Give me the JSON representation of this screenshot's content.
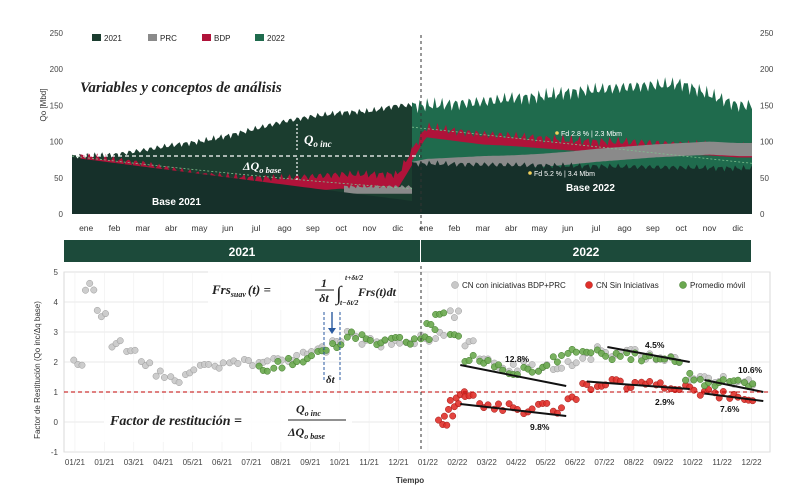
{
  "colors": {
    "s2021": "#1b3d2f",
    "prc": "#8a8a8a",
    "bdp": "#b0133a",
    "s2022": "#1f6b4d",
    "base_dark": "#16302a",
    "band": "#1c4a3a",
    "con": "#c8c8c8",
    "sin": "#e0302a",
    "prom": "#6aa84f",
    "ref": "#c00000"
  },
  "top_chart": {
    "title": "Variables y conceptos de análisis",
    "ylabel": "Qo [Mbd]",
    "y_ticks": [
      "0",
      "50",
      "100",
      "150",
      "200",
      "250"
    ],
    "months": [
      "ene",
      "feb",
      "mar",
      "abr",
      "may",
      "jun",
      "jul",
      "ago",
      "sep",
      "oct",
      "nov",
      "dic",
      "ene",
      "feb",
      "mar",
      "abr",
      "may",
      "jun",
      "jul",
      "ago",
      "sep",
      "oct",
      "nov",
      "dic"
    ],
    "legend": [
      {
        "label": "2021",
        "color_key": "s2021"
      },
      {
        "label": "PRC",
        "color_key": "prc"
      },
      {
        "label": "BDP",
        "color_key": "bdp"
      },
      {
        "label": "2022",
        "color_key": "s2022"
      }
    ],
    "annotations": {
      "q_inc": "Q",
      "q_inc_sub": "o inc",
      "dq_base": "ΔQ",
      "dq_base_sub": "o base",
      "base2021": "Base 2021",
      "base2022": "Base 2022",
      "fd1": "Fd 2.8 % | 2.3 Mbm",
      "fd2": "Fd 5.2 % | 3.4 Mbm"
    }
  },
  "year_band": {
    "y2021": "2021",
    "y2022": "2022"
  },
  "bottom_chart": {
    "ylabel": "Factor de Restitución (Qo inc/Δq base)",
    "xlabel": "Tiempo",
    "y_ticks": [
      "-1",
      "0",
      "1",
      "2",
      "3",
      "4",
      "5"
    ],
    "x_ticks": [
      "01/21",
      "01/21",
      "03/21",
      "04/21",
      "05/21",
      "06/21",
      "07/21",
      "08/21",
      "09/21",
      "10/21",
      "11/21",
      "12/21",
      "01/22",
      "02/22",
      "03/22",
      "04/22",
      "05/22",
      "06/22",
      "07/22",
      "08/22",
      "09/22",
      "10/22",
      "11/22",
      "12/22"
    ],
    "legend": [
      {
        "label": "CN con iniciativas BDP+PRC",
        "color_key": "con"
      },
      {
        "label": "CN Sin Iniciativas",
        "color_key": "sin"
      },
      {
        "label": "Promedio móvil",
        "color_key": "prom"
      }
    ],
    "formula_top": {
      "lhs": "Frs",
      "lhs_sub": "suav",
      "lhs_arg": "(t) =",
      "num": "1",
      "den": "δt",
      "upper": "t+δt/2",
      "lower": "t−δt/2",
      "integrand": "Frs(t)dt"
    },
    "formula_bottom": {
      "lhs": "Factor de restitución =",
      "num": "Q",
      "num_sub": "o inc",
      "den": "ΔQ",
      "den_sub": "o base"
    },
    "delta_t": "δt",
    "pct_labels": [
      "12.8%",
      "4.5%",
      "10.6%",
      "9.8%",
      "2.9%",
      "7.6%"
    ]
  },
  "chart_data": [
    {
      "type": "area",
      "title": "Variables y conceptos de análisis",
      "ylabel": "Qo [Mbd]",
      "ylim": [
        0,
        250
      ],
      "x": [
        "ene",
        "feb",
        "mar",
        "abr",
        "may",
        "jun",
        "jul",
        "ago",
        "sep",
        "oct",
        "nov",
        "dic",
        "ene",
        "feb",
        "mar",
        "abr",
        "may",
        "jun",
        "jul",
        "ago",
        "sep",
        "oct",
        "nov",
        "dic"
      ],
      "series": [
        {
          "name": "2021",
          "values": [
            80,
            82,
            88,
            95,
            100,
            108,
            118,
            128,
            135,
            140,
            142,
            150,
            null,
            null,
            null,
            null,
            null,
            null,
            null,
            null,
            null,
            null,
            null,
            null
          ]
        },
        {
          "name": "PRC",
          "values": [
            null,
            null,
            null,
            null,
            null,
            null,
            null,
            null,
            null,
            38,
            45,
            50,
            58,
            60,
            62,
            63,
            65,
            68,
            72,
            75,
            78,
            80,
            82,
            80
          ]
        },
        {
          "name": "BDP",
          "values": [
            80,
            75,
            70,
            62,
            55,
            52,
            50,
            50,
            52,
            55,
            55,
            55,
            120,
            115,
            110,
            108,
            105,
            102,
            100,
            100,
            98,
            96,
            95,
            92
          ]
        },
        {
          "name": "2022",
          "values": [
            null,
            null,
            null,
            null,
            null,
            null,
            null,
            null,
            null,
            null,
            null,
            null,
            150,
            152,
            155,
            160,
            162,
            168,
            172,
            175,
            178,
            180,
            165,
            150
          ]
        }
      ],
      "grid": false,
      "legend": "top-left"
    },
    {
      "type": "scatter",
      "xlabel": "Tiempo",
      "ylabel": "Factor de Restitución (Qo inc/Δq base)",
      "ylim": [
        -1,
        5
      ],
      "reference_y": 1,
      "series": [
        {
          "name": "CN con iniciativas BDP+PRC",
          "x": [
            0.2,
            0.6,
            1.0,
            1.5,
            2.0,
            2.5,
            3.0,
            3.5,
            4.0,
            4.5,
            5.0,
            5.5,
            6.0,
            6.5,
            7.0,
            7.5,
            8.0,
            8.5,
            9.0,
            9.5,
            10.0,
            10.5,
            11.0,
            11.5,
            12.0,
            12.5,
            13.0,
            13.5,
            14.0,
            14.5,
            15.0,
            15.5,
            16.0,
            16.5,
            17.0,
            17.5,
            18.0,
            18.5,
            19.0,
            19.5,
            20.0,
            20.5,
            21.0,
            21.5,
            22.0,
            22.5,
            23.0
          ],
          "y": [
            2.0,
            4.5,
            3.6,
            2.6,
            2.3,
            2.0,
            1.6,
            1.4,
            1.7,
            1.8,
            1.9,
            2.0,
            2.0,
            2.1,
            2.0,
            2.1,
            2.3,
            2.4,
            2.8,
            2.9,
            2.7,
            2.6,
            2.6,
            2.7,
            2.8,
            2.9,
            3.6,
            2.6,
            2.1,
            1.9,
            1.8,
            1.9,
            1.8,
            1.7,
            2.0,
            2.2,
            2.4,
            2.3,
            2.3,
            2.2,
            2.1,
            2.1,
            1.5,
            1.4,
            1.4,
            1.3,
            1.3
          ]
        },
        {
          "name": "CN Sin Iniciativas",
          "x": [
            12.6,
            12.8,
            13.0,
            13.2,
            13.5,
            14.0,
            14.5,
            15.0,
            15.5,
            16.0,
            16.5,
            17.0,
            17.5,
            18.0,
            18.5,
            19.0,
            19.5,
            20.0,
            20.5,
            21.0,
            21.5,
            22.0,
            22.5,
            23.0
          ],
          "y": [
            0.0,
            0.3,
            0.6,
            0.9,
            0.8,
            0.6,
            0.5,
            0.5,
            0.4,
            0.5,
            0.4,
            0.8,
            1.2,
            1.3,
            1.3,
            1.2,
            1.3,
            1.2,
            1.2,
            1.1,
            1.0,
            0.9,
            0.8,
            0.8
          ]
        },
        {
          "name": "Promedio móvil",
          "x": [
            6.5,
            7.0,
            7.5,
            8.0,
            8.5,
            9.0,
            9.5,
            10.0,
            10.5,
            11.0,
            11.5,
            12.0,
            12.2,
            12.5,
            13.0,
            13.5,
            14.0,
            14.5,
            15.0,
            15.5,
            16.0,
            16.5,
            17.0,
            17.5,
            18.0,
            18.5,
            19.0,
            19.5,
            20.0,
            20.5,
            21.0,
            21.5,
            22.0,
            22.5,
            23.0
          ],
          "y": [
            1.8,
            1.9,
            2.0,
            2.1,
            2.3,
            2.6,
            2.9,
            2.8,
            2.7,
            2.7,
            2.7,
            2.8,
            3.2,
            3.7,
            2.8,
            2.1,
            2.0,
            1.8,
            1.7,
            1.7,
            1.8,
            2.1,
            2.3,
            2.4,
            2.3,
            2.2,
            2.2,
            2.1,
            2.1,
            2.1,
            1.5,
            1.3,
            1.3,
            1.3,
            1.3
          ]
        }
      ],
      "grid": true,
      "legend": "top-right"
    }
  ]
}
